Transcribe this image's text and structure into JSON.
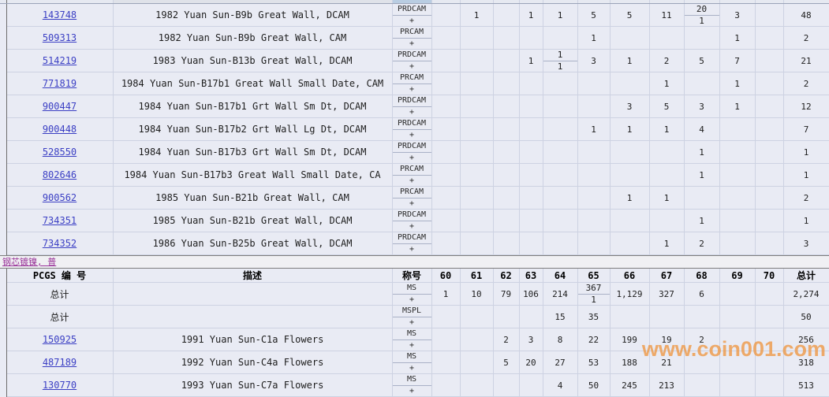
{
  "watermark": {
    "text": "www.coin001.com",
    "color": "#ee9846"
  },
  "section_divider": {
    "label": "钢芯镀镍, 普"
  },
  "table": {
    "header": {
      "pcgs": "PCGS 编 号",
      "desc": "描述",
      "desig": "称号",
      "total": "总计",
      "grades": [
        "60",
        "61",
        "62",
        "63",
        "64",
        "65",
        "66",
        "67",
        "68",
        "69",
        "70"
      ]
    },
    "plus_label": "+",
    "summary_label": "总计",
    "proof_rows": [
      {
        "pcgs": "143748",
        "link": true,
        "desc": "1982 Yuan Sun-B9b Great Wall, DCAM",
        "desig": "PRDCAM",
        "grades": {
          "61": "1",
          "63": "1",
          "64": "1",
          "65": "5",
          "66": "5",
          "67": "11",
          "68": "20",
          "69": "3"
        },
        "plus": {
          "68": "1"
        },
        "total": "48"
      },
      {
        "pcgs": "509313",
        "link": true,
        "desc": "1982 Yuan Sun-B9b Great Wall, CAM",
        "desig": "PRCAM",
        "grades": {
          "65": "1",
          "69": "1"
        },
        "plus": {},
        "total": "2"
      },
      {
        "pcgs": "514219",
        "link": true,
        "desc": "1983 Yuan Sun-B13b Great Wall, DCAM",
        "desig": "PRDCAM",
        "grades": {
          "63": "1",
          "64": "1",
          "65": "3",
          "66": "1",
          "67": "2",
          "68": "5",
          "69": "7"
        },
        "plus": {
          "64": "1"
        },
        "total": "21"
      },
      {
        "pcgs": "771819",
        "link": true,
        "desc": "1984 Yuan Sun-B17b1 Great Wall Small Date, CAM",
        "desig": "PRCAM",
        "grades": {
          "67": "1",
          "69": "1"
        },
        "plus": {},
        "total": "2"
      },
      {
        "pcgs": "900447",
        "link": true,
        "desc": "1984 Yuan Sun-B17b1 Grt Wall Sm Dt, DCAM",
        "desig": "PRDCAM",
        "grades": {
          "66": "3",
          "67": "5",
          "68": "3",
          "69": "1"
        },
        "plus": {},
        "total": "12"
      },
      {
        "pcgs": "900448",
        "link": true,
        "desc": "1984 Yuan Sun-B17b2 Grt Wall Lg Dt, DCAM",
        "desig": "PRDCAM",
        "grades": {
          "65": "1",
          "66": "1",
          "67": "1",
          "68": "4"
        },
        "plus": {},
        "total": "7"
      },
      {
        "pcgs": "528550",
        "link": true,
        "desc": "1984 Yuan Sun-B17b3 Grt Wall Sm Dt, DCAM",
        "desig": "PRDCAM",
        "grades": {
          "68": "1"
        },
        "plus": {},
        "total": "1"
      },
      {
        "pcgs": "802646",
        "link": true,
        "desc": "1984 Yuan Sun-B17b3 Great Wall Small Date, CA",
        "desig": "PRCAM",
        "grades": {
          "68": "1"
        },
        "plus": {},
        "total": "1"
      },
      {
        "pcgs": "900562",
        "link": true,
        "desc": "1985 Yuan Sun-B21b Great Wall, CAM",
        "desig": "PRCAM",
        "grades": {
          "66": "1",
          "67": "1"
        },
        "plus": {},
        "total": "2"
      },
      {
        "pcgs": "734351",
        "link": true,
        "desc": "1985 Yuan Sun-B21b Great Wall, DCAM",
        "desig": "PRDCAM",
        "grades": {
          "68": "1"
        },
        "plus": {},
        "total": "1"
      },
      {
        "pcgs": "734352",
        "link": true,
        "desc": "1986 Yuan Sun-B25b Great Wall, DCAM",
        "desig": "PRDCAM",
        "grades": {
          "67": "1",
          "68": "2"
        },
        "plus": {},
        "total": "3"
      }
    ],
    "ms_rows": [
      {
        "pcgs": "总计",
        "link": false,
        "desc": "",
        "desig": "MS",
        "grades": {
          "60": "1",
          "61": "10",
          "62": "79",
          "63": "106",
          "64": "214",
          "65": "367",
          "66": "1,129",
          "67": "327",
          "68": "6"
        },
        "plus": {
          "65": "1"
        },
        "total": "2,274"
      },
      {
        "pcgs": "总计",
        "link": false,
        "desc": "",
        "desig": "MSPL",
        "grades": {
          "64": "15",
          "65": "35"
        },
        "plus": {},
        "total": "50"
      },
      {
        "pcgs": "150925",
        "link": true,
        "desc": "1991 Yuan Sun-C1a Flowers",
        "desig": "MS",
        "grades": {
          "62": "2",
          "63": "3",
          "64": "8",
          "65": "22",
          "66": "199",
          "67": "19",
          "68": "2"
        },
        "plus": {},
        "total": "256"
      },
      {
        "pcgs": "487189",
        "link": true,
        "desc": "1992 Yuan Sun-C4a Flowers",
        "desig": "MS",
        "grades": {
          "62": "5",
          "63": "20",
          "64": "27",
          "65": "53",
          "66": "188",
          "67": "21"
        },
        "plus": {},
        "total": "318"
      },
      {
        "pcgs": "130770",
        "link": true,
        "desc": "1993 Yuan Sun-C7a Flowers",
        "desig": "MS",
        "grades": {
          "64": "4",
          "65": "50",
          "66": "245",
          "67": "213"
        },
        "plus": {},
        "total": "513"
      }
    ]
  }
}
